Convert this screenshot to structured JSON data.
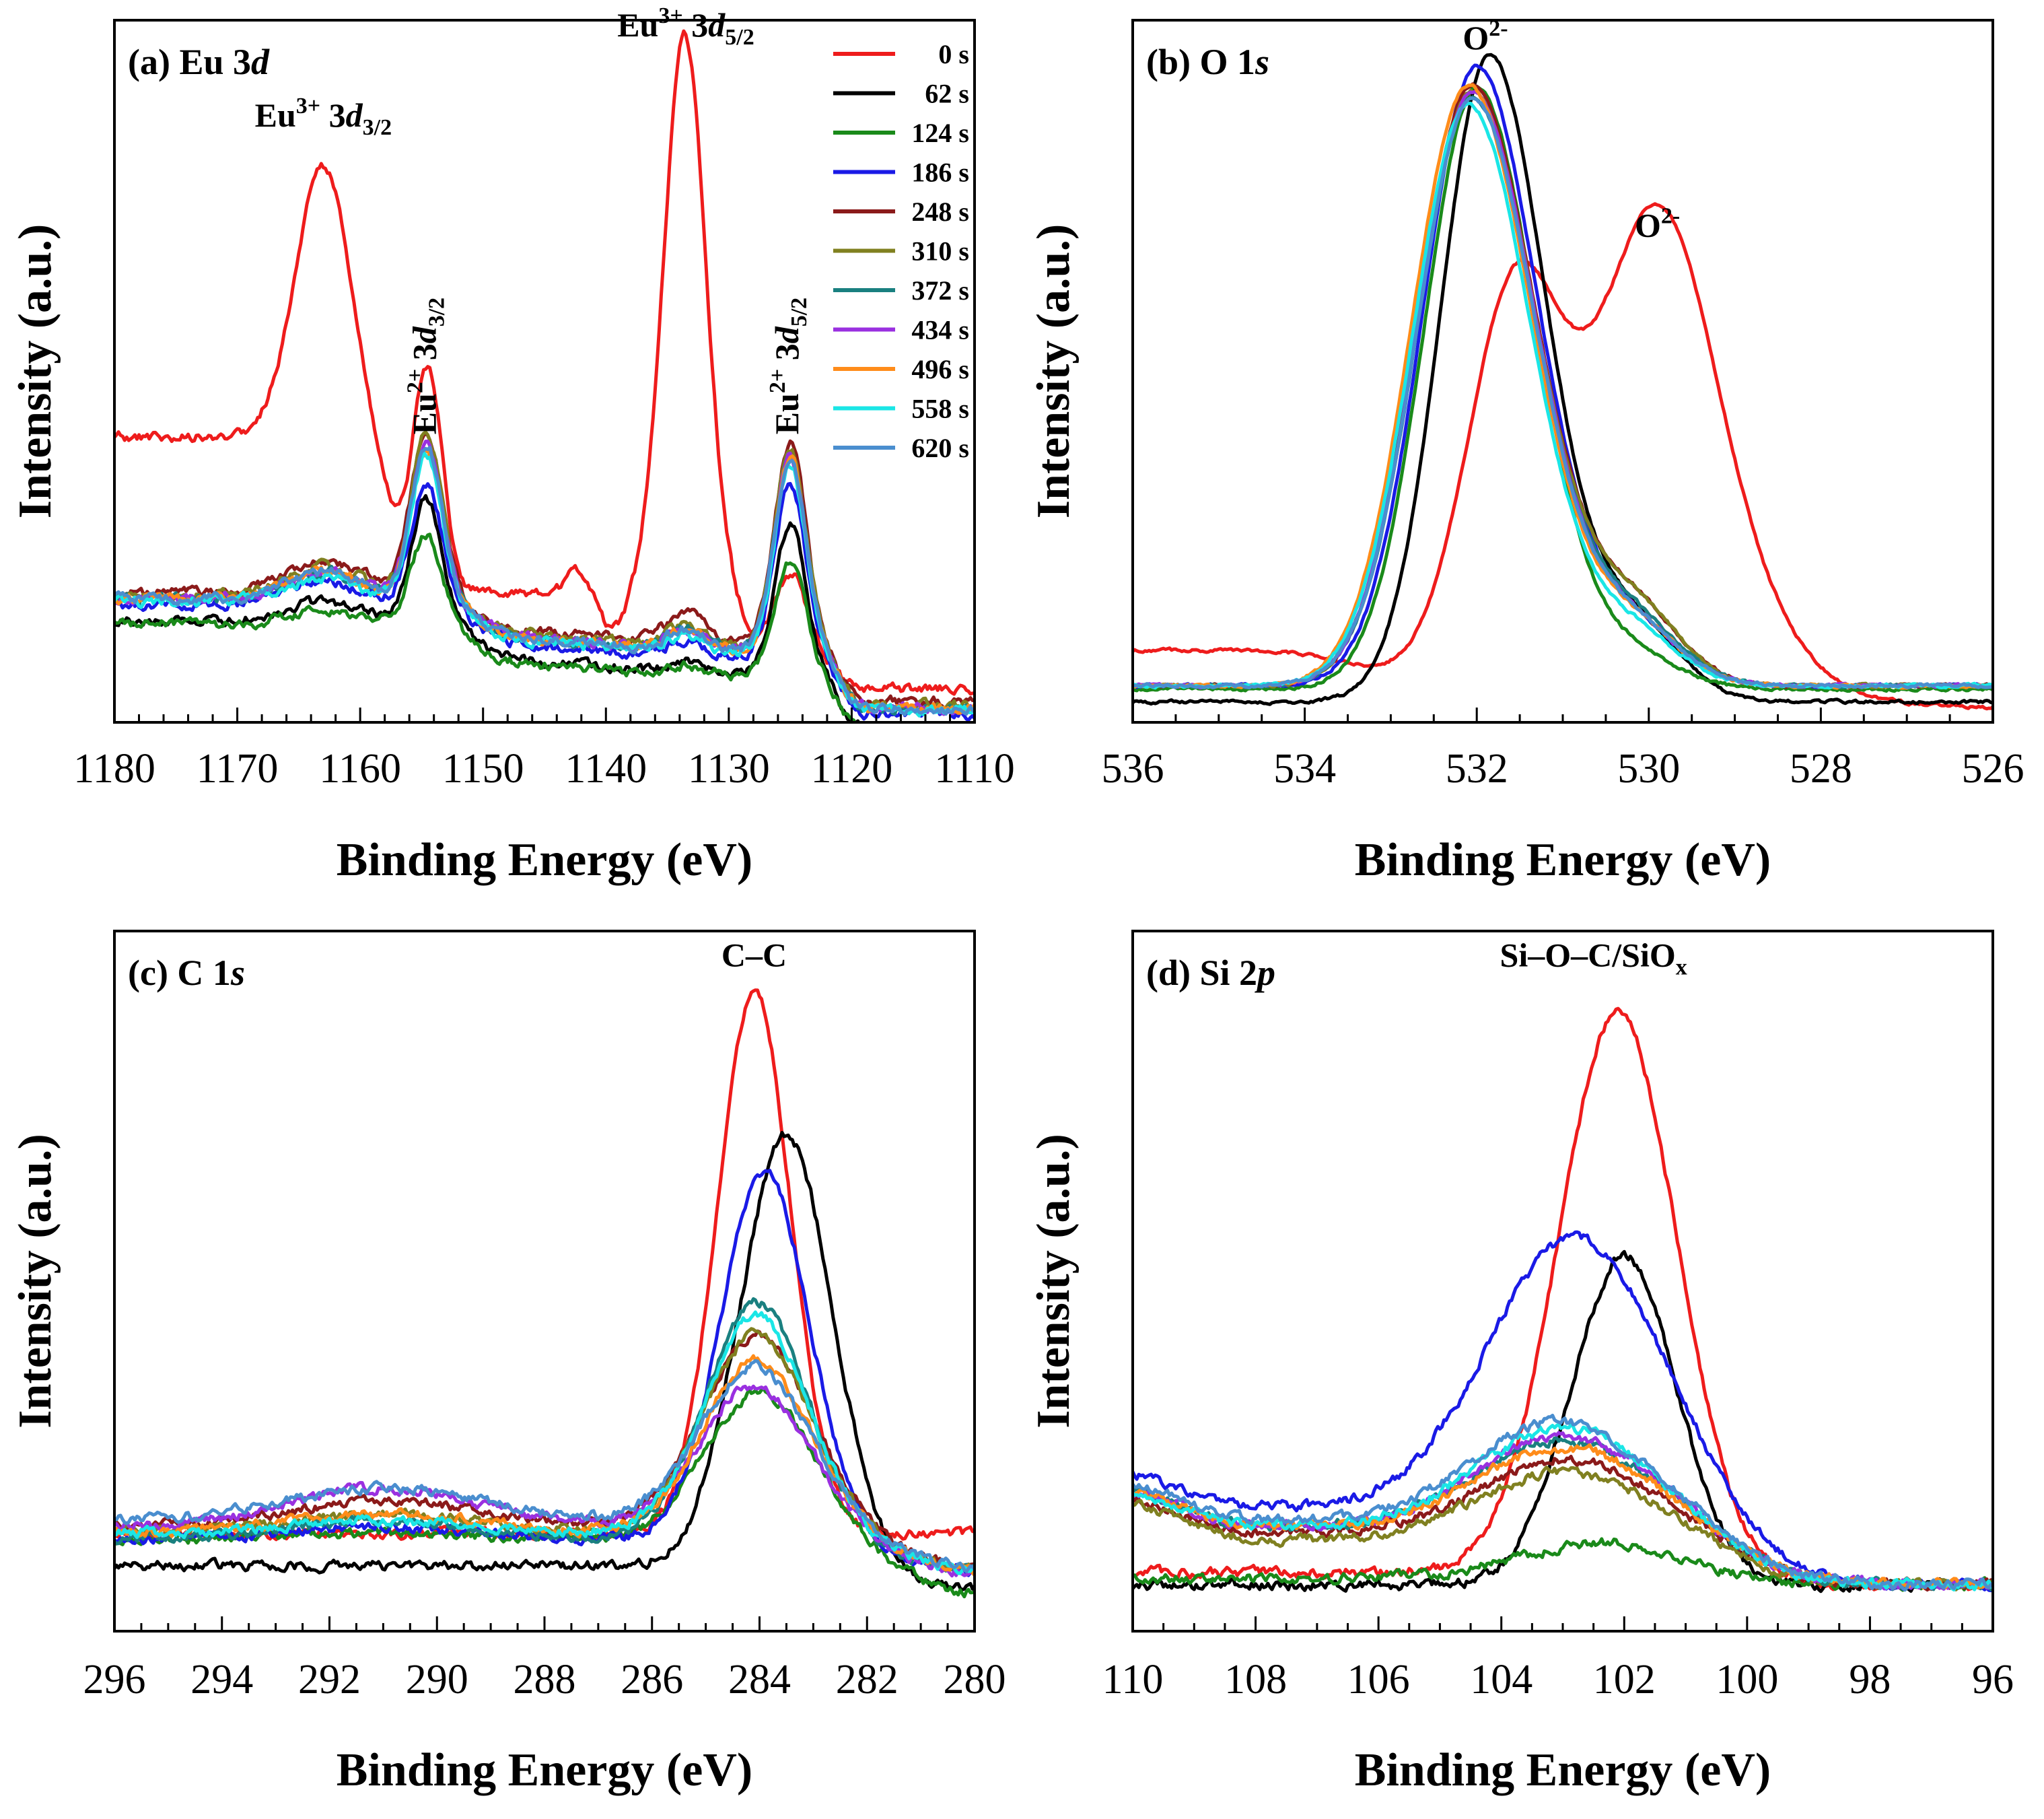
{
  "series_colors": {
    "0 s": "#ee1c1c",
    "62 s": "#000000",
    "124 s": "#1a8a1a",
    "186 s": "#1a1ae6",
    "248 s": "#8b1a1a",
    "310 s": "#808020",
    "372 s": "#1a8080",
    "434 s": "#9a30e0",
    "496 s": "#ff8c1a",
    "558 s": "#1ae6e6",
    "620 s": "#4a8ecf"
  },
  "legend": [
    "0 s",
    "62 s",
    "124 s",
    "186 s",
    "248 s",
    "310 s",
    "372 s",
    "434 s",
    "496 s",
    "558 s",
    "620 s"
  ],
  "chart_data": [
    {
      "id": "a",
      "type": "line",
      "title": "(a) Eu 3d",
      "title_plain": "(a) Eu 3",
      "title_italic": "d",
      "xlabel": "Binding Energy (eV)",
      "ylabel": "Intensity (a.u.)",
      "xlim": [
        1180,
        1110
      ],
      "ylim": [
        0,
        1
      ],
      "xticks": [
        1180,
        1170,
        1160,
        1150,
        1140,
        1130,
        1120,
        1110
      ],
      "xtick_labels": [
        "1180",
        "1170",
        "1160",
        "1150",
        "1140",
        "1130",
        "1120",
        "1110"
      ],
      "minor_step": 2,
      "annotations": [
        {
          "text": "Eu3+ 3d3/2",
          "x": 1163,
          "y": 0.89
        },
        {
          "text": "Eu3+ 3d5/2",
          "x": 1133.5,
          "y": 1.03
        },
        {
          "text": "Eu2+ 3d3/2",
          "x": 1154.5,
          "y": 0.53
        },
        {
          "text": "Eu2+ 3d5/2",
          "x": 1125,
          "y": 0.53
        }
      ],
      "series": [
        {
          "name": "0 s",
          "model": "eu_red"
        },
        {
          "name": "62 s",
          "model": "eu",
          "params": {
            "base": 0.135,
            "a1": 0.19,
            "a2": 0.23,
            "b1": 0.03,
            "b2": 0.015
          }
        },
        {
          "name": "124 s",
          "model": "eu",
          "params": {
            "base": 0.13,
            "a1": 0.14,
            "a2": 0.18,
            "b1": 0.02,
            "b2": 0.015
          }
        },
        {
          "name": "186 s",
          "model": "eu",
          "params": {
            "base": 0.16,
            "a1": 0.19,
            "a2": 0.27,
            "b1": 0.035,
            "b2": 0.02
          }
        },
        {
          "name": "248 s",
          "model": "eu",
          "params": {
            "base": 0.18,
            "a1": 0.25,
            "a2": 0.31,
            "b1": 0.05,
            "b2": 0.045
          }
        },
        {
          "name": "310 s",
          "model": "eu",
          "params": {
            "base": 0.175,
            "a1": 0.25,
            "a2": 0.31,
            "b1": 0.045,
            "b2": 0.03
          }
        },
        {
          "name": "372 s",
          "model": "eu",
          "params": {
            "base": 0.17,
            "a1": 0.23,
            "a2": 0.3,
            "b1": 0.04,
            "b2": 0.03
          }
        },
        {
          "name": "434 s",
          "model": "eu",
          "params": {
            "base": 0.17,
            "a1": 0.24,
            "a2": 0.3,
            "b1": 0.04,
            "b2": 0.03
          }
        },
        {
          "name": "496 s",
          "model": "eu",
          "params": {
            "base": 0.17,
            "a1": 0.23,
            "a2": 0.3,
            "b1": 0.04,
            "b2": 0.03
          }
        },
        {
          "name": "558 s",
          "model": "eu",
          "params": {
            "base": 0.165,
            "a1": 0.23,
            "a2": 0.29,
            "b1": 0.035,
            "b2": 0.025
          }
        },
        {
          "name": "620 s",
          "model": "eu",
          "params": {
            "base": 0.17,
            "a1": 0.24,
            "a2": 0.3,
            "b1": 0.04,
            "b2": 0.03
          }
        }
      ]
    },
    {
      "id": "b",
      "type": "line",
      "title": "(b) O 1s",
      "title_plain": "(b) O 1",
      "title_italic": "s",
      "xlabel": "Binding Energy (eV)",
      "ylabel": "Intensity (a.u.)",
      "xlim": [
        536,
        526
      ],
      "ylim": [
        0,
        1
      ],
      "xticks": [
        536,
        534,
        532,
        530,
        528,
        526
      ],
      "xtick_labels": [
        "536",
        "534",
        "532",
        "530",
        "528",
        "526"
      ],
      "minor_step": 0.5,
      "annotations": [
        {
          "text": "O2-",
          "x": 531.9,
          "y": 1.01
        },
        {
          "text": "O2-",
          "x": 529.9,
          "y": 0.72
        }
      ],
      "series": [
        {
          "name": "0 s",
          "model": "o_red"
        },
        {
          "name": "62 s",
          "model": "o",
          "params": {
            "c": 531.85,
            "a": 1.0,
            "s": 0.62,
            "base": 0.01,
            "sh": 0.12
          }
        },
        {
          "name": "124 s",
          "model": "o",
          "params": {
            "c": 532.0,
            "a": 0.93,
            "s": 0.66,
            "base": 0.03,
            "sh": 0.05
          }
        },
        {
          "name": "186 s",
          "model": "o",
          "params": {
            "c": 532.0,
            "a": 0.96,
            "s": 0.68,
            "base": 0.035,
            "sh": 0.09
          }
        },
        {
          "name": "248 s",
          "model": "o",
          "params": {
            "c": 532.05,
            "a": 0.93,
            "s": 0.7,
            "base": 0.035,
            "sh": 0.12
          }
        },
        {
          "name": "310 s",
          "model": "o",
          "params": {
            "c": 532.05,
            "a": 0.92,
            "s": 0.7,
            "base": 0.035,
            "sh": 0.12
          }
        },
        {
          "name": "372 s",
          "model": "o",
          "params": {
            "c": 532.05,
            "a": 0.91,
            "s": 0.7,
            "base": 0.035,
            "sh": 0.1
          }
        },
        {
          "name": "434 s",
          "model": "o",
          "params": {
            "c": 532.05,
            "a": 0.92,
            "s": 0.7,
            "base": 0.035,
            "sh": 0.09
          }
        },
        {
          "name": "496 s",
          "model": "o",
          "params": {
            "c": 532.1,
            "a": 0.93,
            "s": 0.71,
            "base": 0.035,
            "sh": 0.09
          }
        },
        {
          "name": "558 s",
          "model": "o",
          "params": {
            "c": 532.1,
            "a": 0.9,
            "s": 0.7,
            "base": 0.035,
            "sh": 0.08
          }
        },
        {
          "name": "620 s",
          "model": "o",
          "params": {
            "c": 532.05,
            "a": 0.91,
            "s": 0.7,
            "base": 0.035,
            "sh": 0.09
          }
        }
      ]
    },
    {
      "id": "c",
      "type": "line",
      "title": "(c) C 1s",
      "title_plain": "(c) C 1",
      "title_italic": "s",
      "xlabel": "Binding Energy (eV)",
      "ylabel": "Intensity (a.u.)",
      "xlim": [
        296,
        280
      ],
      "ylim": [
        0,
        1
      ],
      "xticks": [
        296,
        294,
        292,
        290,
        288,
        286,
        284,
        282,
        280
      ],
      "xtick_labels": [
        "296",
        "294",
        "292",
        "290",
        "288",
        "286",
        "284",
        "282",
        "280"
      ],
      "minor_step": 0.5,
      "annotations": [
        {
          "text": "C–C",
          "x": 284.1,
          "y": 1.0
        }
      ],
      "series": [
        {
          "name": "0 s",
          "model": "c",
          "params": {
            "c": 284.1,
            "a": 0.84,
            "s": 0.68,
            "base": 0.13,
            "bump": 0.0,
            "end": 0.13
          }
        },
        {
          "name": "62 s",
          "model": "c",
          "params": {
            "c": 283.5,
            "a": 0.67,
            "s": 0.85,
            "base": 0.08,
            "bump": 0.0,
            "end": 0.04
          }
        },
        {
          "name": "124 s",
          "model": "c",
          "params": {
            "c": 284.0,
            "a": 0.23,
            "s": 1.0,
            "base": 0.12,
            "bump": 0.01,
            "end": 0.03
          }
        },
        {
          "name": "186 s",
          "model": "c",
          "params": {
            "c": 283.9,
            "a": 0.57,
            "s": 0.82,
            "base": 0.12,
            "bump": 0.02,
            "end": 0.07
          }
        },
        {
          "name": "248 s",
          "model": "c",
          "params": {
            "c": 284.05,
            "a": 0.3,
            "s": 1.0,
            "base": 0.14,
            "bump": 0.04,
            "end": 0.07
          }
        },
        {
          "name": "310 s",
          "model": "c",
          "params": {
            "c": 284.05,
            "a": 0.31,
            "s": 1.0,
            "base": 0.13,
            "bump": 0.03,
            "end": 0.07
          }
        },
        {
          "name": "372 s",
          "model": "c",
          "params": {
            "c": 284.05,
            "a": 0.37,
            "s": 0.95,
            "base": 0.12,
            "bump": 0.03,
            "end": 0.07
          }
        },
        {
          "name": "434 s",
          "model": "c",
          "params": {
            "c": 284.1,
            "a": 0.22,
            "s": 1.0,
            "base": 0.14,
            "bump": 0.06,
            "end": 0.06
          }
        },
        {
          "name": "496 s",
          "model": "c",
          "params": {
            "c": 284.05,
            "a": 0.27,
            "s": 1.0,
            "base": 0.13,
            "bump": 0.03,
            "end": 0.07
          }
        },
        {
          "name": "558 s",
          "model": "c",
          "params": {
            "c": 284.05,
            "a": 0.34,
            "s": 0.95,
            "base": 0.13,
            "bump": 0.02,
            "end": 0.07
          }
        },
        {
          "name": "620 s",
          "model": "c",
          "params": {
            "c": 284.1,
            "a": 0.24,
            "s": 1.0,
            "base": 0.15,
            "bump": 0.05,
            "end": 0.07
          }
        }
      ]
    },
    {
      "id": "d",
      "type": "line",
      "title": "(d) Si 2p",
      "title_plain": "(d) Si 2",
      "title_italic": "p",
      "xlabel": "Binding Energy (eV)",
      "ylabel": "Intensity (a.u.)",
      "xlim": [
        110,
        96
      ],
      "ylim": [
        0,
        1
      ],
      "xticks": [
        110,
        108,
        106,
        104,
        102,
        100,
        98,
        96
      ],
      "xtick_labels": [
        "110",
        "108",
        "106",
        "104",
        "102",
        "100",
        "98",
        "96"
      ],
      "minor_step": 0.5,
      "annotations": [
        {
          "text": "Si–O–C/SiOx",
          "x": 102.5,
          "y": 1.0
        }
      ],
      "series": [
        {
          "name": "0 s",
          "model": "si",
          "params": {
            "c": 102.1,
            "a": 0.87,
            "s": 0.95,
            "lb": 0.07,
            "rb": 0.05,
            "bg": 0.0
          }
        },
        {
          "name": "62 s",
          "model": "si",
          "params": {
            "c": 102.0,
            "a": 0.51,
            "s": 0.85,
            "lb": 0.05,
            "rb": 0.05,
            "bg": 0.0
          }
        },
        {
          "name": "124 s",
          "model": "si",
          "params": {
            "c": 102.2,
            "a": 0.05,
            "s": 1.2,
            "lb": 0.06,
            "rb": 0.05,
            "bg": 0.01
          }
        },
        {
          "name": "186 s",
          "model": "si",
          "params": {
            "c": 102.6,
            "a": 0.34,
            "s": 1.35,
            "lb": 0.17,
            "rb": 0.05,
            "bg": 0.1
          }
        },
        {
          "name": "248 s",
          "model": "si",
          "params": {
            "c": 102.7,
            "a": 0.09,
            "s": 1.4,
            "lb": 0.13,
            "rb": 0.05,
            "bg": 0.03
          }
        },
        {
          "name": "310 s",
          "model": "si",
          "params": {
            "c": 102.7,
            "a": 0.08,
            "s": 1.4,
            "lb": 0.12,
            "rb": 0.05,
            "bg": 0.03
          }
        },
        {
          "name": "372 s",
          "model": "si",
          "params": {
            "c": 102.7,
            "a": 0.09,
            "s": 1.4,
            "lb": 0.14,
            "rb": 0.05,
            "bg": 0.05
          }
        },
        {
          "name": "434 s",
          "model": "si",
          "params": {
            "c": 102.7,
            "a": 0.1,
            "s": 1.4,
            "lb": 0.14,
            "rb": 0.05,
            "bg": 0.05
          }
        },
        {
          "name": "496 s",
          "model": "si",
          "params": {
            "c": 102.7,
            "a": 0.09,
            "s": 1.4,
            "lb": 0.14,
            "rb": 0.05,
            "bg": 0.04
          }
        },
        {
          "name": "558 s",
          "model": "si",
          "params": {
            "c": 102.8,
            "a": 0.12,
            "s": 1.4,
            "lb": 0.14,
            "rb": 0.05,
            "bg": 0.04
          }
        },
        {
          "name": "620 s",
          "model": "si",
          "params": {
            "c": 102.7,
            "a": 0.09,
            "s": 1.4,
            "lb": 0.15,
            "rb": 0.05,
            "bg": 0.07
          }
        }
      ]
    }
  ]
}
